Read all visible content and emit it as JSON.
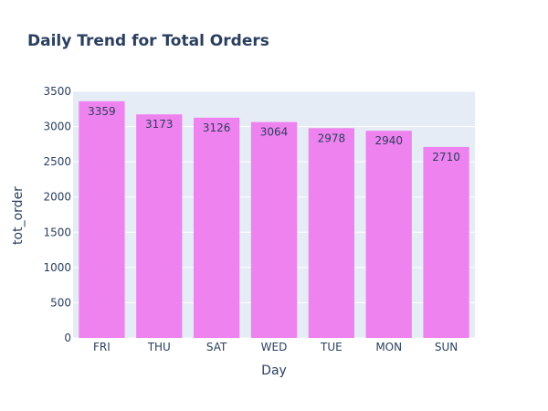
{
  "chart_data": {
    "type": "bar",
    "title": "Daily Trend for Total Orders",
    "xlabel": "Day",
    "ylabel": "tot_order",
    "categories": [
      "FRI",
      "THU",
      "SAT",
      "WED",
      "TUE",
      "MON",
      "SUN"
    ],
    "values": [
      3359,
      3173,
      3126,
      3064,
      2978,
      2940,
      2710
    ],
    "ylim": [
      0,
      3500
    ],
    "yticks": [
      0,
      500,
      1000,
      1500,
      2000,
      2500,
      3000,
      3500
    ],
    "grid": true,
    "legend": "none",
    "colors": {
      "bar": "#ee82ee",
      "plot_background": "#e5ecf6",
      "grid": "#ffffff",
      "text": "#2a3f5f"
    }
  }
}
